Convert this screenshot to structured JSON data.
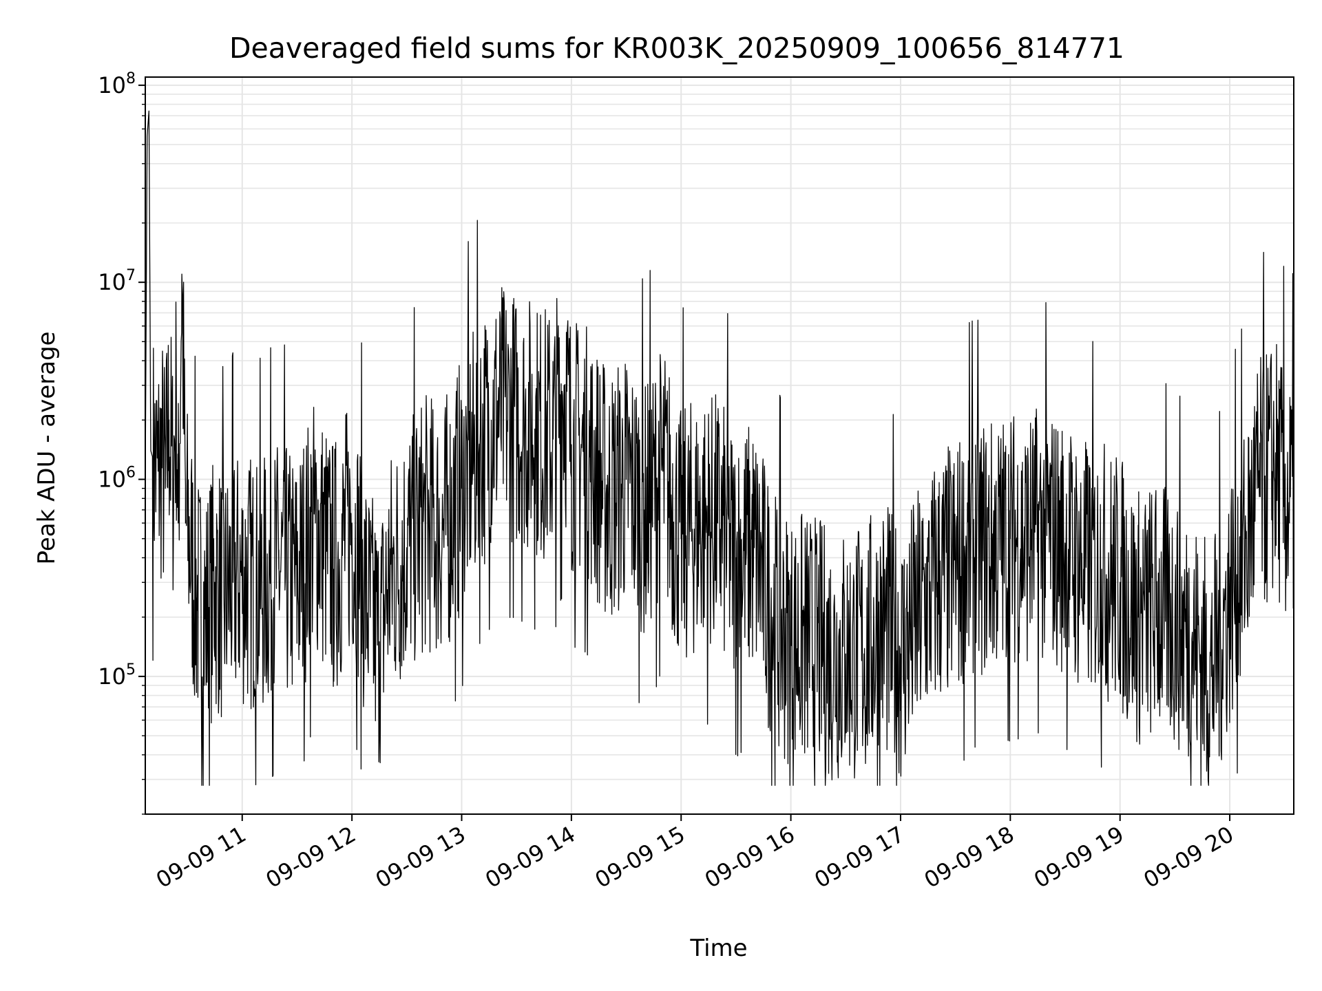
{
  "chart_data": {
    "type": "line",
    "title": "Deaveraged field sums for KR003K_20250909_100656_814771",
    "xlabel": "Time",
    "ylabel": "Peak ADU - average",
    "yscale": "log",
    "ylim": [
      20000,
      110000000
    ],
    "xlim": [
      "2025-09-09 10:07",
      "2025-09-09 20:35"
    ],
    "grid": true,
    "line_color": "#000000",
    "grid_color": "#e5e5e5",
    "x_tick_labels": [
      "09-09 11",
      "09-09 12",
      "09-09 13",
      "09-09 14",
      "09-09 15",
      "09-09 16",
      "09-09 17",
      "09-09 18",
      "09-09 19",
      "09-09 20"
    ],
    "y_tick_labels": [
      {
        "value": 100000,
        "base": "10",
        "exp": "5"
      },
      {
        "value": 1000000,
        "base": "10",
        "exp": "6"
      },
      {
        "value": 10000000,
        "base": "10",
        "exp": "7"
      },
      {
        "value": 100000000,
        "base": "10",
        "exp": "8"
      }
    ],
    "series": [
      {
        "x": [
          "10:07",
          "10:08",
          "10:09",
          "10:10",
          "10:12",
          "10:14",
          "10:16",
          "10:18",
          "10:20",
          "10:22",
          "10:24",
          "10:25",
          "10:27",
          "10:29",
          "10:31",
          "10:33",
          "10:35",
          "10:40",
          "10:45",
          "10:50",
          "10:55",
          "11:00",
          "11:10",
          "11:20",
          "11:30",
          "11:40",
          "11:50",
          "12:00",
          "12:10",
          "12:15",
          "12:20",
          "12:30",
          "12:40",
          "12:50",
          "13:00",
          "13:10",
          "13:20",
          "13:30",
          "13:40",
          "13:50",
          "13:56",
          "14:00",
          "14:10",
          "14:20",
          "14:30",
          "14:40",
          "14:50",
          "15:00",
          "15:10",
          "15:20",
          "15:30",
          "15:40",
          "15:50",
          "16:00",
          "16:10",
          "16:20",
          "16:30",
          "16:40",
          "16:50",
          "17:00",
          "17:10",
          "17:20",
          "17:30",
          "17:40",
          "17:50",
          "18:00",
          "18:10",
          "18:20",
          "18:30",
          "18:40",
          "18:50",
          "19:00",
          "19:10",
          "19:20",
          "19:30",
          "19:40",
          "19:50",
          "20:00",
          "20:10",
          "20:15",
          "20:20",
          "20:25",
          "20:30",
          "20:35"
        ],
        "y": [
          1000000,
          55000000,
          74000000,
          1400000,
          1200000,
          1100000,
          1300000,
          900000,
          2000000,
          1000000,
          2500000,
          600000,
          11000000,
          600000,
          500000,
          350000,
          250000,
          200000,
          300000,
          250000,
          300000,
          320000,
          280000,
          350000,
          300000,
          600000,
          350000,
          600000,
          200000,
          150000,
          300000,
          450000,
          600000,
          550000,
          900000,
          1500000,
          2200000,
          2000000,
          1800000,
          1600000,
          3000000,
          1500000,
          1300000,
          800000,
          1000000,
          700000,
          1100000,
          500000,
          600000,
          600000,
          400000,
          450000,
          200000,
          150000,
          150000,
          130000,
          130000,
          130000,
          180000,
          130000,
          200000,
          300000,
          350000,
          450000,
          450000,
          500000,
          500000,
          550000,
          450000,
          350000,
          350000,
          300000,
          200000,
          220000,
          200000,
          150000,
          100000,
          250000,
          500000,
          900000,
          1000000,
          1200000,
          800000,
          750000
        ]
      }
    ]
  }
}
